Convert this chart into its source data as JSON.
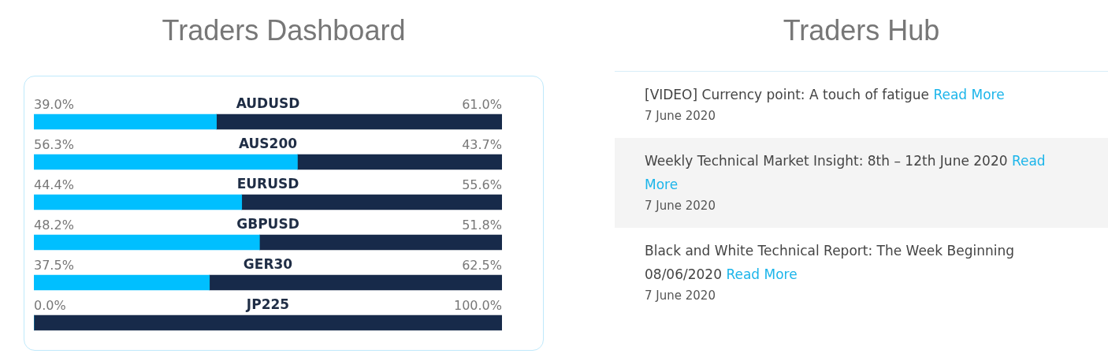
{
  "chart_data": [
    {
      "type": "bar",
      "title": "Traders Dashboard",
      "orientation": "horizontal",
      "stacked": true,
      "categories": [
        "AUDUSD",
        "AUS200",
        "EURUSD",
        "GBPUSD",
        "GER30",
        "JP225"
      ],
      "series": [
        {
          "color": "#00bfff",
          "values": [
            39.0,
            56.3,
            44.4,
            48.2,
            37.5,
            0.0
          ],
          "value_labels": [
            "39.0%",
            "56.3%",
            "44.4%",
            "48.2%",
            "37.5%",
            "0.0%"
          ]
        },
        {
          "color": "#172a4a",
          "values": [
            61.0,
            43.7,
            55.6,
            51.8,
            62.5,
            100.0
          ],
          "value_labels": [
            "61.0%",
            "43.7%",
            "55.6%",
            "51.8%",
            "62.5%",
            "100.0%"
          ]
        }
      ],
      "legend": false
    },
    {
      "type": "other",
      "title": "Traders Hub",
      "annotations": [
        "[VIDEO] Currency point: A touch of fatigue",
        "Read More",
        "7 June 2020",
        "Weekly Technical Market Insight: 8th – 12th June 2020",
        "Read More",
        "7 June 2020",
        "Black and White Technical Report: The Week Beginning 08/06/2020",
        "Read More",
        "7 June 2020"
      ]
    }
  ]
}
